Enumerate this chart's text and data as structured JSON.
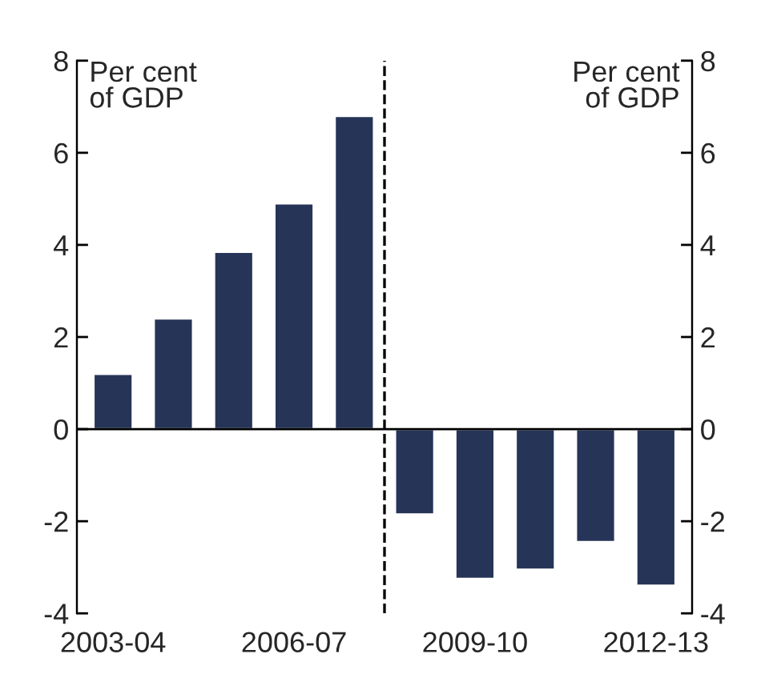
{
  "chart_data": {
    "type": "bar",
    "categories": [
      "2003-04",
      null,
      null,
      "2006-07",
      null,
      null,
      "2009-10",
      null,
      null,
      "2012-13"
    ],
    "values": [
      1.2,
      2.4,
      3.85,
      4.9,
      6.8,
      -1.85,
      -3.25,
      -3.05,
      -2.45,
      -3.4
    ],
    "color": "#263457",
    "ylabel": "Per cent\nof GDP",
    "y2label": "Per cent\nof GDP",
    "ylim": [
      -4,
      8
    ],
    "yticks": [
      -4,
      -2,
      0,
      2,
      4,
      6,
      8
    ],
    "y2lim": [
      -4,
      8
    ],
    "y2ticks": [
      -4,
      -2,
      0,
      2,
      4,
      6,
      8
    ],
    "grid": false,
    "legend": false
  }
}
